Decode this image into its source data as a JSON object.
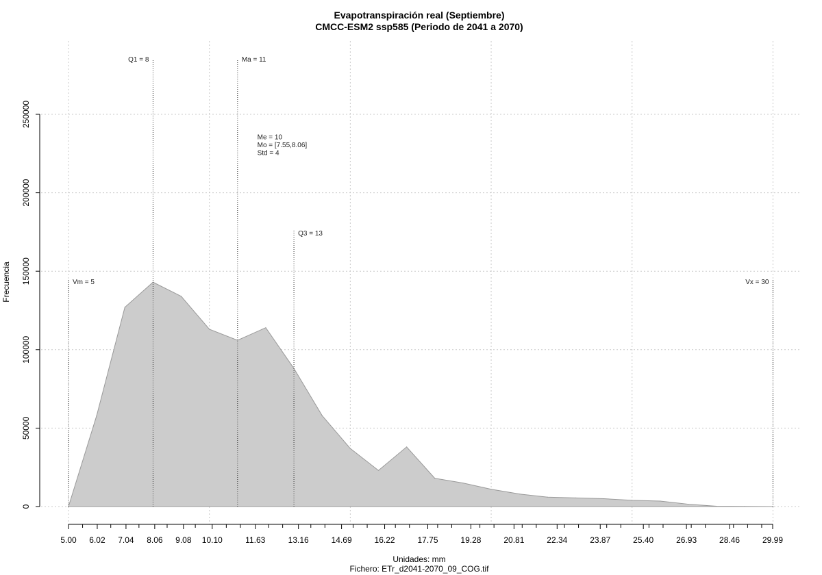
{
  "chart_data": {
    "type": "area",
    "title": "Evapotranspiración real (Septiembre)",
    "subtitle": "CMCC-ESM2 ssp585 (Periodo de 2041 a 2070)",
    "xlabel": "Unidades: mm",
    "ylabel": "Frecuencia",
    "footer": "Fichero: ETr_d2041-2070_09_COG.tif",
    "xlim": [
      5.0,
      30.5
    ],
    "ylim": [
      0,
      280000
    ],
    "x_ticks": [
      "5.00",
      "6.02",
      "7.04",
      "8.06",
      "9.08",
      "10.10",
      "11.63",
      "13.16",
      "14.69",
      "16.22",
      "17.75",
      "19.28",
      "20.81",
      "22.34",
      "23.87",
      "25.40",
      "26.93",
      "28.46",
      "29.99"
    ],
    "x_tick_values": [
      5.0,
      6.02,
      7.04,
      8.06,
      9.08,
      10.1,
      11.63,
      13.16,
      14.69,
      16.22,
      17.75,
      19.28,
      20.81,
      22.34,
      23.87,
      25.4,
      26.93,
      28.46,
      29.99
    ],
    "x_minor_ticks": [
      5.5,
      6.5,
      7.5,
      8.5,
      9.5,
      10.6,
      11.1,
      12.1,
      12.6,
      13.6,
      14.1,
      15.1,
      15.6,
      16.6,
      17.1,
      18.1,
      18.6,
      19.6,
      20.1,
      21.1,
      21.6,
      22.6,
      23.1,
      24.1,
      24.6,
      25.6,
      26.1,
      27.1,
      27.6,
      28.6,
      29.1,
      29.6
    ],
    "y_ticks": [
      0,
      50000,
      100000,
      150000,
      200000,
      250000
    ],
    "y_tick_labels": [
      "0",
      "50000",
      "100000",
      "150000",
      "200000",
      "250000"
    ],
    "x_grid": [
      5,
      10,
      15,
      20,
      25,
      30
    ],
    "grid": true,
    "x": [
      5.0,
      6.0,
      7.0,
      8.0,
      9.0,
      10.0,
      11.0,
      12.0,
      13.0,
      14.0,
      15.0,
      16.0,
      17.0,
      18.0,
      19.0,
      20.0,
      21.0,
      22.0,
      23.0,
      24.0,
      25.0,
      26.0,
      27.0,
      28.0,
      29.0,
      30.0
    ],
    "values": [
      0,
      58000,
      127000,
      143000,
      134000,
      113000,
      106000,
      114000,
      88000,
      58000,
      37000,
      23000,
      38000,
      18000,
      15000,
      11000,
      8000,
      6000,
      5500,
      5000,
      4000,
      3500,
      1500,
      200,
      100,
      0
    ],
    "fill_color": "#cccccc",
    "line_color": "#999999",
    "markers": [
      {
        "label": "Vm = 5",
        "x": 5.0,
        "top": 145000,
        "label_y": 143000,
        "align": "right"
      },
      {
        "label": "Q1 = 8",
        "x": 8.0,
        "top": 285000,
        "label_y": 285000,
        "align": "left"
      },
      {
        "label": "Ma = 11",
        "x": 11.0,
        "top": 285000,
        "label_y": 285000,
        "align": "right"
      },
      {
        "label": "Q3 = 13",
        "x": 13.0,
        "top": 176000,
        "label_y": 174000,
        "align": "right"
      },
      {
        "label": "Vx = 30",
        "x": 30.0,
        "top": 145000,
        "label_y": 143000,
        "align": "left"
      }
    ],
    "stats": [
      "Me = 10",
      "Mo = [7.55,8.06]",
      "Std = 4"
    ],
    "stats_x": 11.7,
    "stats_y": 234000
  }
}
